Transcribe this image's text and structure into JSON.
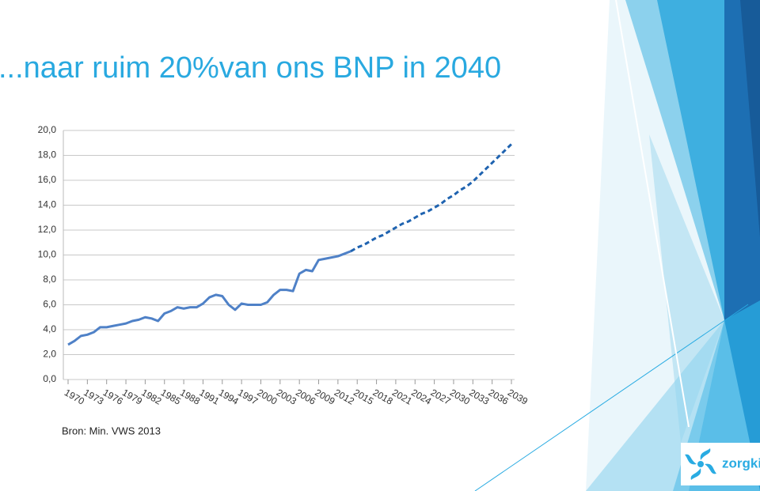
{
  "chart_data": {
    "type": "line",
    "title": "...naar ruim 20%van ons BNP in 2040",
    "source": "Bron: Min. VWS 2013",
    "logo": "zorgki",
    "x": [
      1970,
      1971,
      1972,
      1973,
      1974,
      1975,
      1976,
      1977,
      1978,
      1979,
      1980,
      1981,
      1982,
      1983,
      1984,
      1985,
      1986,
      1987,
      1988,
      1989,
      1990,
      1991,
      1992,
      1993,
      1994,
      1995,
      1996,
      1997,
      1998,
      1999,
      2000,
      2001,
      2002,
      2003,
      2004,
      2005,
      2006,
      2007,
      2008,
      2009,
      2010,
      2011,
      2012,
      2013,
      2014,
      2015,
      2016,
      2017,
      2018,
      2019,
      2020,
      2021,
      2022,
      2023,
      2024,
      2025,
      2026,
      2027,
      2028,
      2029,
      2030,
      2031,
      2032,
      2033,
      2034,
      2035,
      2036,
      2037,
      2038,
      2039
    ],
    "series": [
      {
        "color": "#4f81c7",
        "line_style": "solid",
        "values": [
          2.8,
          3.1,
          3.5,
          3.6,
          3.8,
          4.2,
          4.2,
          4.3,
          4.4,
          4.5,
          4.7,
          4.8,
          5.0,
          4.9,
          4.7,
          5.3,
          5.5,
          5.8,
          5.7,
          5.8,
          5.8,
          6.1,
          6.6,
          6.8,
          6.7,
          6.0,
          5.6,
          6.1,
          6.0,
          6.0,
          6.0,
          6.2,
          6.8,
          7.2,
          7.2,
          7.1,
          8.5,
          8.8,
          8.7,
          9.6,
          9.7,
          9.8,
          9.9,
          10.1,
          10.3,
          null,
          null,
          null,
          null,
          null,
          null,
          null,
          null,
          null,
          null,
          null,
          null,
          null,
          null,
          null,
          null,
          null,
          null,
          null,
          null,
          null,
          null,
          null,
          null,
          null
        ]
      },
      {
        "color": "#1f63b0",
        "line_style": "dashed",
        "values": [
          null,
          null,
          null,
          null,
          null,
          null,
          null,
          null,
          null,
          null,
          null,
          null,
          null,
          null,
          null,
          null,
          null,
          null,
          null,
          null,
          null,
          null,
          null,
          null,
          null,
          null,
          null,
          null,
          null,
          null,
          null,
          null,
          null,
          null,
          null,
          null,
          null,
          null,
          null,
          null,
          null,
          null,
          null,
          null,
          10.3,
          10.6,
          10.8,
          11.1,
          11.4,
          11.6,
          11.9,
          12.2,
          12.5,
          12.7,
          13.0,
          13.3,
          13.5,
          13.8,
          14.1,
          14.5,
          14.8,
          15.2,
          15.5,
          15.9,
          16.4,
          16.9,
          17.4,
          17.9,
          18.4,
          18.9
        ]
      }
    ],
    "xlim": [
      1970,
      2039
    ],
    "xticks": [
      1970,
      1973,
      1976,
      1979,
      1982,
      1985,
      1988,
      1991,
      1994,
      1997,
      2000,
      2003,
      2006,
      2009,
      2012,
      2015,
      2018,
      2021,
      2024,
      2027,
      2030,
      2033,
      2036,
      2039
    ],
    "ylim": [
      0,
      20
    ],
    "yticks": [
      {
        "value": 0,
        "label": "0,0"
      },
      {
        "value": 2,
        "label": "2,0"
      },
      {
        "value": 4,
        "label": "4,0"
      },
      {
        "value": 6,
        "label": "6,0"
      },
      {
        "value": 8,
        "label": "8,0"
      },
      {
        "value": 10,
        "label": "10,0"
      },
      {
        "value": 12,
        "label": "12,0"
      },
      {
        "value": 14,
        "label": "14,0"
      },
      {
        "value": 16,
        "label": "16,0"
      },
      {
        "value": 18,
        "label": "18,0"
      },
      {
        "value": 20,
        "label": "20,0"
      }
    ],
    "grid": true
  }
}
